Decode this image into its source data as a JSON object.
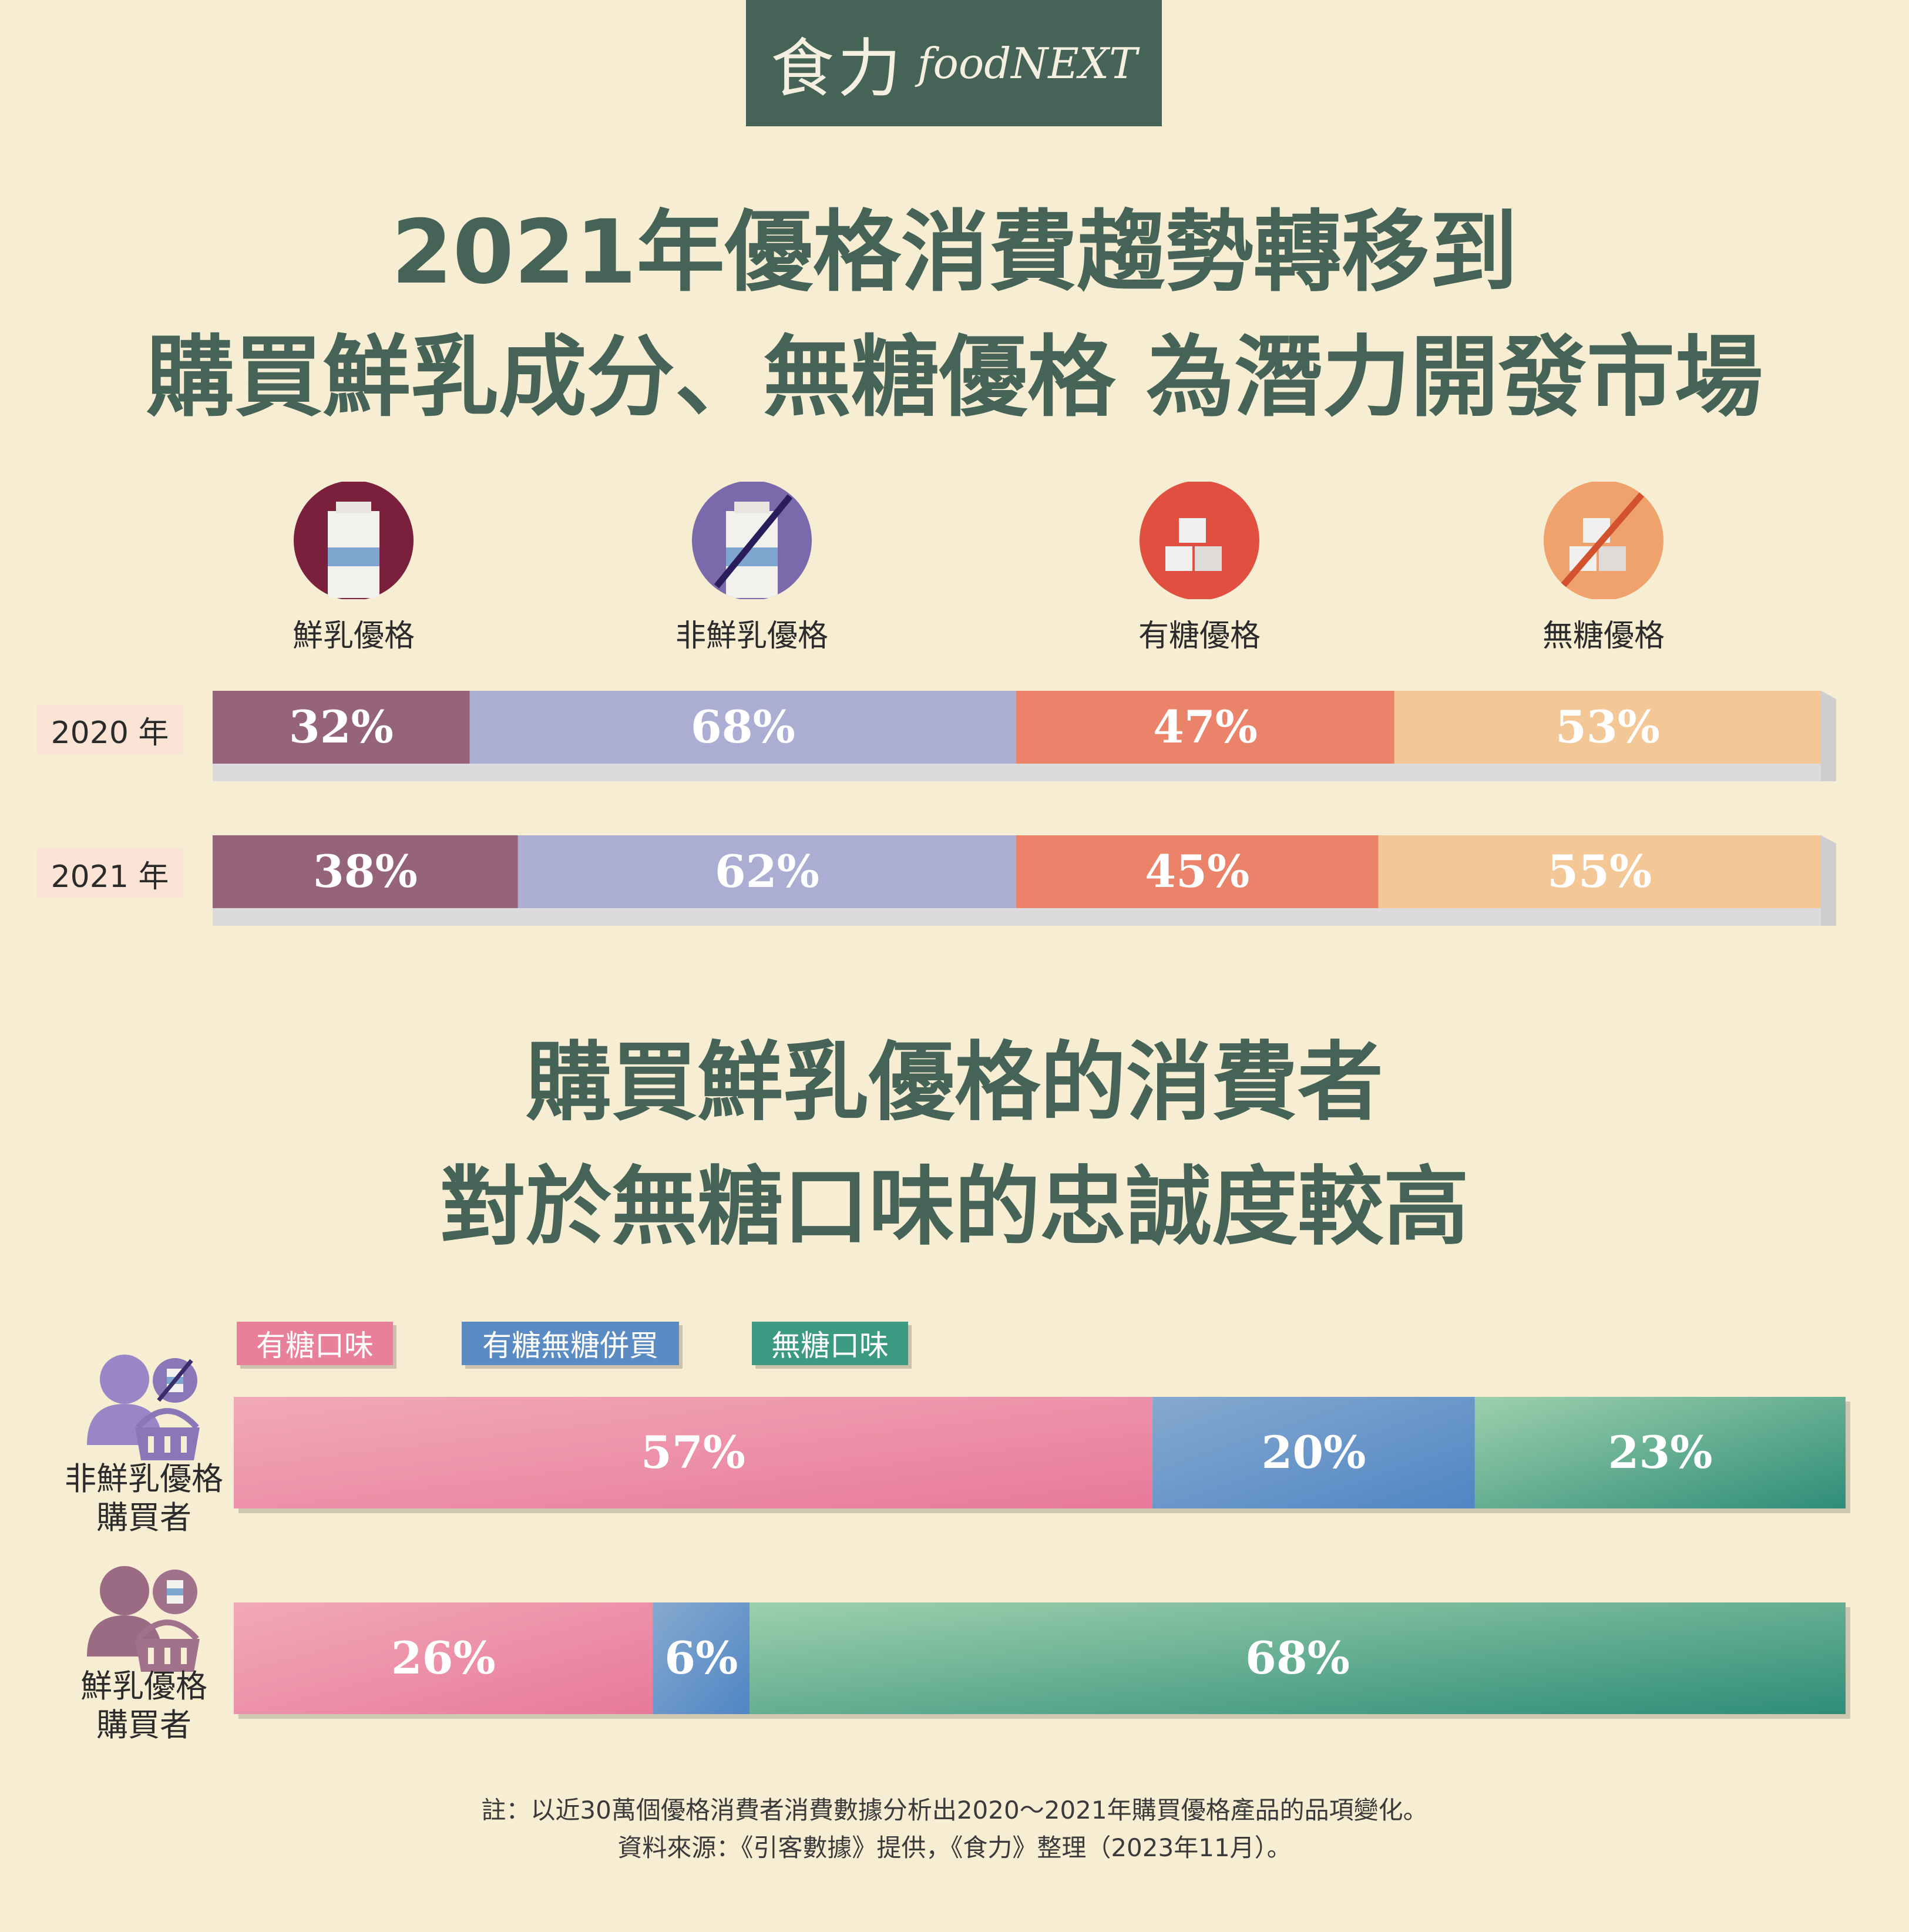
{
  "logo": {
    "zh": "食力",
    "en": "foodNEXT"
  },
  "title1": {
    "line1": "2021年優格消費趨勢轉移到",
    "line2": "購買鮮乳成分、無糖優格 為潛力開發市場"
  },
  "icons": {
    "fresh": "milk-carton-icon",
    "non_fresh": "crossed-milk-carton-icon",
    "sugar": "sugar-cube-icon",
    "no_sugar": "crossed-sugar-cube-icon"
  },
  "colors": {
    "background": "#f7edd3",
    "title": "#456457",
    "fresh": "#95637a",
    "non_fresh": "#abadd2",
    "sugar": "#eb836b",
    "no_sugar": "#f4c797",
    "sweet": "#e98099",
    "mixed": "#5a8bc2",
    "unsweet": "#3c9a83"
  },
  "chart_data": [
    {
      "type": "bar",
      "stacked": true,
      "orientation": "horizontal",
      "categories": [
        "2020 年",
        "2021 年"
      ],
      "groups": [
        {
          "series": [
            {
              "name": "鮮乳優格",
              "values": [
                32,
                38
              ]
            },
            {
              "name": "非鮮乳優格",
              "values": [
                68,
                62
              ]
            }
          ]
        },
        {
          "series": [
            {
              "name": "有糖優格",
              "values": [
                47,
                45
              ]
            },
            {
              "name": "無糖優格",
              "values": [
                53,
                55
              ]
            }
          ]
        }
      ],
      "value_labels": [
        [
          "32%",
          "68%",
          "47%",
          "53%"
        ],
        [
          "38%",
          "62%",
          "45%",
          "55%"
        ]
      ]
    },
    {
      "type": "bar",
      "stacked": true,
      "orientation": "horizontal",
      "title": "購買鮮乳優格的消費者 對於無糖口味的忠誠度較高",
      "legend": "top",
      "categories": [
        "非鮮乳優格購買者",
        "鮮乳優格購買者"
      ],
      "series": [
        {
          "name": "有糖口味",
          "values": [
            57,
            26
          ]
        },
        {
          "name": "有糖無糖併買",
          "values": [
            20,
            6
          ]
        },
        {
          "name": "無糖口味",
          "values": [
            23,
            68
          ]
        }
      ],
      "value_labels": [
        [
          "57%",
          "20%",
          "23%"
        ],
        [
          "26%",
          "6%",
          "68%"
        ]
      ]
    }
  ],
  "title2": {
    "line1": "購買鮮乳優格的消費者",
    "line2": "對於無糖口味的忠誠度較高"
  },
  "groups": {
    "non_fresh_buyer": {
      "line1": "非鮮乳優格",
      "line2": "購買者",
      "icon": "person-basket-crossed-milk-icon"
    },
    "fresh_buyer": {
      "line1": "鮮乳優格",
      "line2": "購買者",
      "icon": "person-basket-milk-icon"
    }
  },
  "notes": {
    "line1": "註：以近30萬個優格消費者消費數據分析出2020～2021年購買優格產品的品項變化。",
    "line2": "資料來源：《引客數據》提供，《食力》整理（2023年11月）。"
  }
}
